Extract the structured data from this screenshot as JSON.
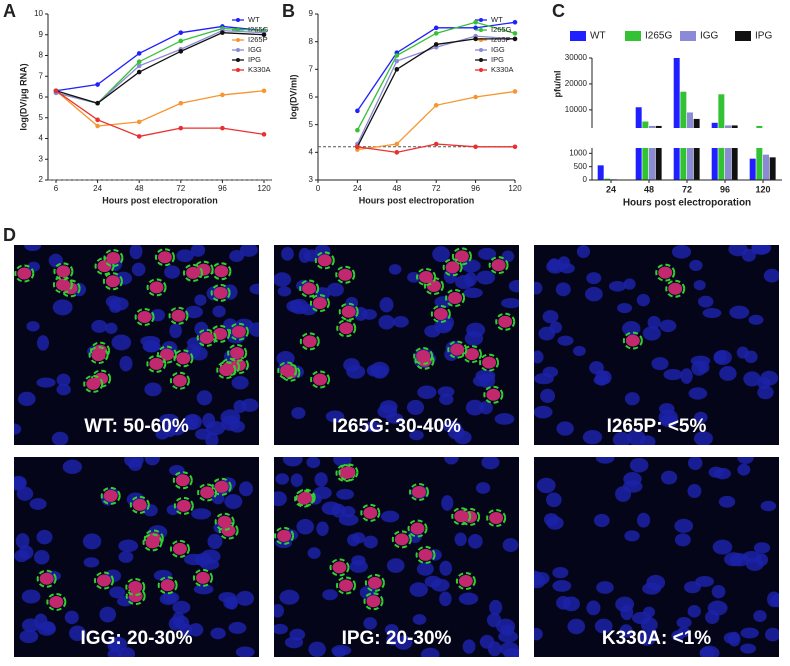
{
  "chart_data": [
    {
      "type": "line",
      "panel": "A",
      "ylabel": "log(DV/µg RNA)",
      "xlabel": "Hours post electroporation",
      "categories": [
        6,
        24,
        48,
        72,
        96,
        120
      ],
      "ylim": [
        2,
        10
      ],
      "yticks": [
        2,
        3,
        4,
        5,
        6,
        7,
        8,
        9,
        10
      ],
      "hline": 2,
      "legend": "upper right",
      "series": [
        {
          "name": "WT",
          "color": "#1f1fff",
          "values": [
            6.3,
            6.6,
            8.1,
            9.1,
            9.4,
            9.2
          ]
        },
        {
          "name": "I265G",
          "color": "#33c233",
          "values": [
            6.2,
            5.7,
            7.7,
            8.7,
            9.3,
            9.2
          ]
        },
        {
          "name": "I265P",
          "color": "#f7952e",
          "values": [
            6.3,
            4.6,
            4.8,
            5.7,
            6.1,
            6.3
          ]
        },
        {
          "name": "IGG",
          "color": "#8a8ad6",
          "values": [
            6.2,
            5.7,
            7.5,
            8.3,
            9.2,
            9.1
          ]
        },
        {
          "name": "IPG",
          "color": "#111111",
          "values": [
            6.3,
            5.7,
            7.2,
            8.2,
            9.1,
            9.0
          ]
        },
        {
          "name": "K330A",
          "color": "#e8302e",
          "values": [
            6.3,
            4.9,
            4.1,
            4.5,
            4.5,
            4.2
          ]
        }
      ]
    },
    {
      "type": "line",
      "panel": "B",
      "ylabel": "log(DV/ml)",
      "xlabel": "Hours post electroporation",
      "x": [
        24,
        48,
        72,
        96,
        120
      ],
      "xlim": [
        0,
        120
      ],
      "xticks": [
        0,
        24,
        48,
        72,
        96,
        120
      ],
      "ylim": [
        3,
        9
      ],
      "yticks": [
        3,
        4,
        5,
        6,
        7,
        8,
        9
      ],
      "hline": 4.2,
      "legend": "upper right",
      "series": [
        {
          "name": "WT",
          "color": "#1f1fff",
          "values": [
            5.5,
            7.6,
            8.5,
            8.5,
            8.7
          ]
        },
        {
          "name": "I265G",
          "color": "#33c233",
          "values": [
            4.8,
            7.5,
            8.3,
            8.7,
            8.3
          ]
        },
        {
          "name": "I265P",
          "color": "#f7952e",
          "values": [
            4.1,
            4.3,
            5.7,
            6.0,
            6.2
          ]
        },
        {
          "name": "IGG",
          "color": "#8a8ad6",
          "values": [
            4.3,
            7.3,
            7.8,
            8.2,
            8.1
          ]
        },
        {
          "name": "IPG",
          "color": "#111111",
          "values": [
            4.2,
            7.0,
            7.9,
            8.1,
            8.1
          ]
        },
        {
          "name": "K330A",
          "color": "#e8302e",
          "values": [
            4.2,
            4.0,
            4.3,
            4.2,
            4.2
          ]
        }
      ]
    },
    {
      "type": "bar",
      "panel": "C",
      "ylabel": "pfu/ml",
      "xlabel": "Hours post electroporation",
      "categories": [
        24,
        48,
        72,
        96,
        120
      ],
      "legend": "top",
      "segments": [
        {
          "ylim": [
            0,
            1200
          ],
          "yticks": [
            0,
            500,
            1000
          ]
        },
        {
          "ylim": [
            3000,
            30000
          ],
          "yticks": [
            10000,
            20000,
            30000
          ]
        }
      ],
      "series": [
        {
          "name": "WT",
          "color": "#1f1fff",
          "values": [
            550,
            11000,
            30000,
            5000,
            800
          ]
        },
        {
          "name": "I265G",
          "color": "#33c233",
          "values": [
            50,
            5500,
            17000,
            16000,
            3800
          ]
        },
        {
          "name": "IGG",
          "color": "#8a8ad6",
          "values": [
            30,
            3800,
            9000,
            4000,
            950
          ]
        },
        {
          "name": "IPG",
          "color": "#111111",
          "values": [
            10,
            3800,
            6500,
            4000,
            850
          ]
        }
      ]
    }
  ],
  "panel_d": "D",
  "images": [
    {
      "label": "WT: 50-60%"
    },
    {
      "label": "I265G: 30-40%"
    },
    {
      "label": "I265P: <5%"
    },
    {
      "label": "IGG: 20-30%"
    },
    {
      "label": "IPG: 20-30%"
    },
    {
      "label": "K330A: <1%"
    }
  ]
}
